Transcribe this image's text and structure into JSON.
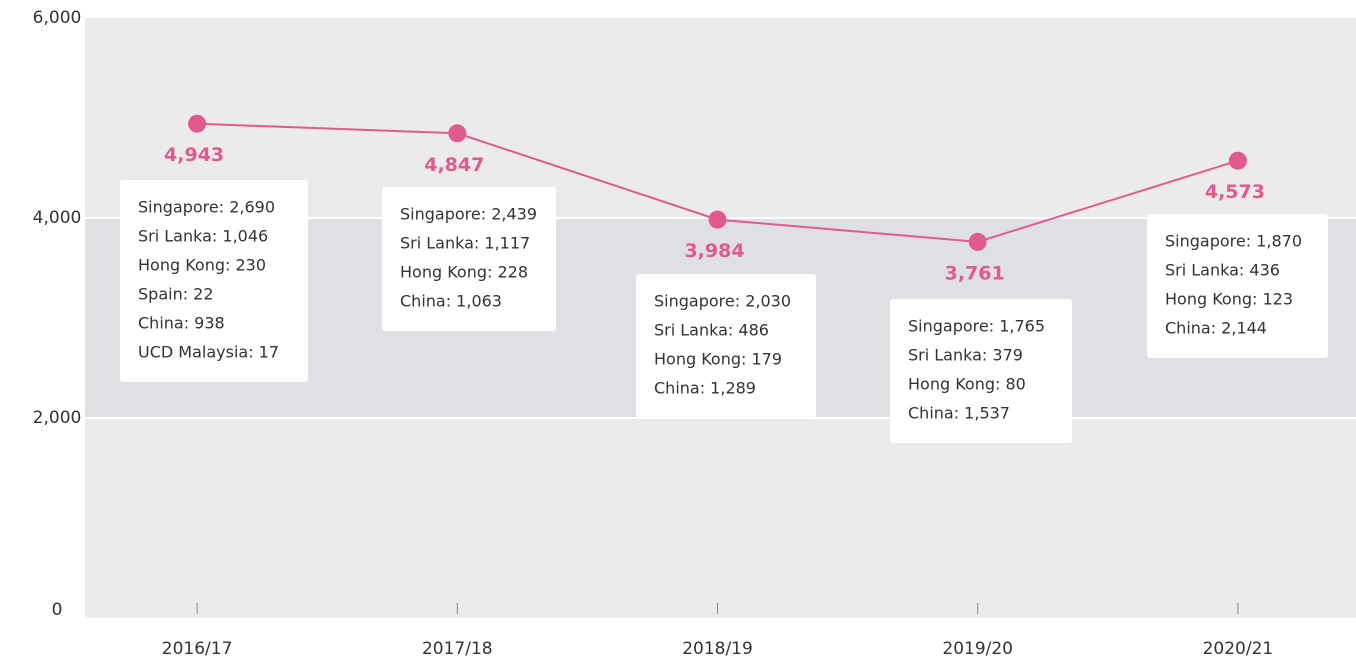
{
  "chart_data": {
    "type": "line",
    "categories": [
      "2016/17",
      "2017/18",
      "2018/19",
      "2019/20",
      "2020/21"
    ],
    "values": [
      4943,
      4847,
      3984,
      3761,
      4573
    ],
    "value_labels": [
      "4,943",
      "4,847",
      "3,984",
      "3,761",
      "4,573"
    ],
    "color": "#e05a8f",
    "ylim": [
      0,
      6000
    ],
    "yticks": [
      {
        "value": 0,
        "label": "0"
      },
      {
        "value": 2000,
        "label": "2,000"
      },
      {
        "value": 4000,
        "label": "4,000"
      },
      {
        "value": 6000,
        "label": "6,000"
      }
    ],
    "grid": true,
    "annotations": [
      [
        "Singapore: 2,690",
        "Sri Lanka: 1,046",
        "Hong Kong: 230",
        "Spain: 22",
        "China: 938",
        "UCD Malaysia: 17"
      ],
      [
        "Singapore: 2,439",
        "Sri Lanka: 1,117",
        "Hong Kong: 228",
        "China: 1,063"
      ],
      [
        "Singapore: 2,030",
        "Sri Lanka: 486",
        "Hong Kong: 179",
        "China: 1,289"
      ],
      [
        "Singapore: 1,765",
        "Sri Lanka: 379",
        "Hong Kong: 80",
        "China: 1,537"
      ],
      [
        "Singapore: 1,870",
        "Sri Lanka: 436",
        "Hong Kong: 123",
        "China: 2,144"
      ]
    ]
  }
}
